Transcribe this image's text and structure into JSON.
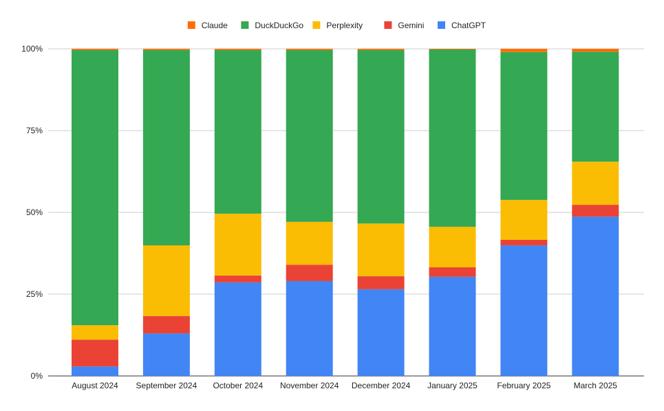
{
  "chart_data": {
    "type": "bar",
    "stacked": "percent",
    "title": "",
    "xlabel": "",
    "ylabel": "",
    "ylim": [
      0,
      100
    ],
    "yticks": [
      "0%",
      "25%",
      "50%",
      "75%",
      "100%"
    ],
    "grid": true,
    "legend_position": "top",
    "categories": [
      "August 2024",
      "September 2024",
      "October 2024",
      "November 2024",
      "December 2024",
      "January 2025",
      "February 2025",
      "March 2025"
    ],
    "series": [
      {
        "name": "ChatGPT",
        "color": "#4285F4",
        "values": [
          2.9,
          13.0,
          28.6,
          29.0,
          26.5,
          30.3,
          39.9,
          48.7
        ]
      },
      {
        "name": "Gemini",
        "color": "#EA4335",
        "values": [
          8.2,
          5.3,
          2.1,
          5.0,
          4.0,
          2.9,
          1.7,
          3.6
        ]
      },
      {
        "name": "Perplexity",
        "color": "#FBBC04",
        "values": [
          4.4,
          21.6,
          18.9,
          13.1,
          16.1,
          12.4,
          12.2,
          13.2
        ]
      },
      {
        "name": "DuckDuckGo",
        "color": "#34A853",
        "values": [
          84.1,
          59.7,
          50.0,
          52.5,
          53.0,
          54.2,
          45.2,
          33.6
        ]
      },
      {
        "name": "Claude",
        "color": "#FF6D01",
        "values": [
          0.4,
          0.4,
          0.4,
          0.4,
          0.4,
          0.2,
          1.0,
          0.9
        ]
      }
    ],
    "legend_order": [
      "Claude",
      "DuckDuckGo",
      "Perplexity",
      "Gemini",
      "ChatGPT"
    ]
  }
}
